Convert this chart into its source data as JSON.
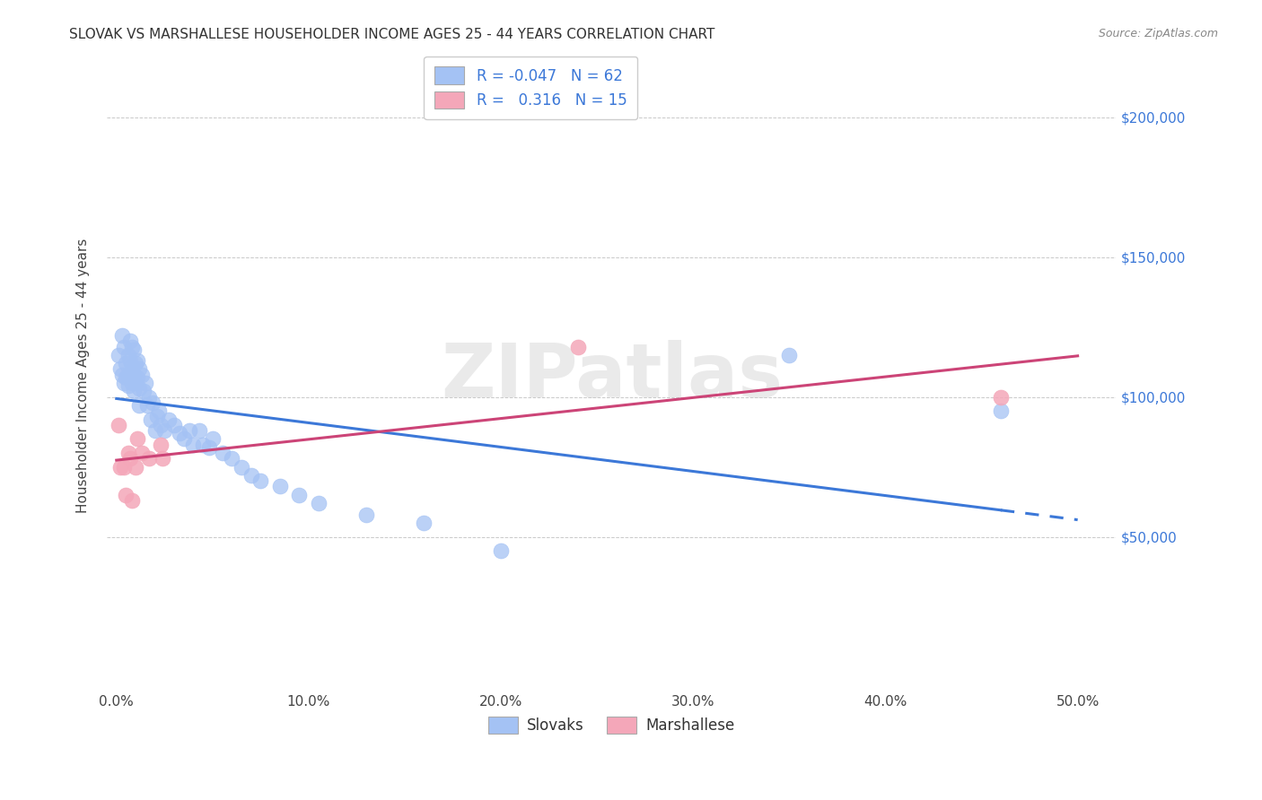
{
  "title": "SLOVAK VS MARSHALLESE HOUSEHOLDER INCOME AGES 25 - 44 YEARS CORRELATION CHART",
  "source": "Source: ZipAtlas.com",
  "ylabel": "Householder Income Ages 25 - 44 years",
  "xlabel_ticks": [
    "0.0%",
    "10.0%",
    "20.0%",
    "30.0%",
    "40.0%",
    "50.0%"
  ],
  "xlabel_vals": [
    0.0,
    0.1,
    0.2,
    0.3,
    0.4,
    0.5
  ],
  "ylabel_ticks": [
    "$50,000",
    "$100,000",
    "$150,000",
    "$200,000"
  ],
  "ylabel_vals": [
    50000,
    100000,
    150000,
    200000
  ],
  "ylim": [
    -5000,
    220000
  ],
  "xlim": [
    -0.005,
    0.52
  ],
  "watermark": "ZIPatlas",
  "legend_slovak_R": "-0.047",
  "legend_slovak_N": "62",
  "legend_marshall_R": "0.316",
  "legend_marshall_N": "15",
  "slovak_color": "#a4c2f4",
  "marshall_color": "#f4a7b9",
  "slovak_line_color": "#3c78d8",
  "marshall_line_color": "#cc4477",
  "background_color": "#ffffff",
  "grid_color": "#bbbbbb",
  "slovak_x": [
    0.001,
    0.002,
    0.003,
    0.003,
    0.004,
    0.004,
    0.005,
    0.005,
    0.006,
    0.006,
    0.006,
    0.007,
    0.007,
    0.007,
    0.008,
    0.008,
    0.008,
    0.009,
    0.009,
    0.009,
    0.01,
    0.01,
    0.011,
    0.011,
    0.012,
    0.012,
    0.012,
    0.013,
    0.014,
    0.015,
    0.016,
    0.017,
    0.018,
    0.019,
    0.02,
    0.021,
    0.022,
    0.023,
    0.025,
    0.027,
    0.03,
    0.033,
    0.035,
    0.038,
    0.04,
    0.043,
    0.045,
    0.048,
    0.05,
    0.055,
    0.06,
    0.065,
    0.07,
    0.075,
    0.085,
    0.095,
    0.105,
    0.13,
    0.16,
    0.2,
    0.35,
    0.46
  ],
  "slovak_y": [
    115000,
    110000,
    122000,
    108000,
    118000,
    105000,
    112000,
    107000,
    115000,
    108000,
    104000,
    120000,
    113000,
    107000,
    118000,
    111000,
    105000,
    117000,
    108000,
    102000,
    112000,
    105000,
    113000,
    107000,
    110000,
    103000,
    97000,
    108000,
    102000,
    105000,
    97000,
    100000,
    92000,
    98000,
    88000,
    93000,
    95000,
    90000,
    88000,
    92000,
    90000,
    87000,
    85000,
    88000,
    83000,
    88000,
    83000,
    82000,
    85000,
    80000,
    78000,
    75000,
    72000,
    70000,
    68000,
    65000,
    62000,
    58000,
    55000,
    45000,
    115000,
    95000
  ],
  "marshall_x": [
    0.001,
    0.002,
    0.004,
    0.005,
    0.006,
    0.007,
    0.008,
    0.01,
    0.011,
    0.013,
    0.017,
    0.023,
    0.024,
    0.24,
    0.46
  ],
  "marshall_y": [
    90000,
    75000,
    75000,
    65000,
    80000,
    78000,
    63000,
    75000,
    85000,
    80000,
    78000,
    83000,
    78000,
    118000,
    100000
  ]
}
